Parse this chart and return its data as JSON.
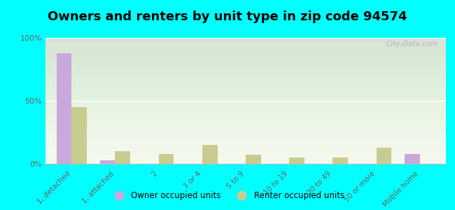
{
  "title": "Owners and renters by unit type in zip code 94574",
  "categories": [
    "1, detached",
    "1, attached",
    "2",
    "3 or 4",
    "5 to 9",
    "10 to 19",
    "20 to 49",
    "50 or more",
    "Mobile home"
  ],
  "owner_values": [
    88,
    3,
    0,
    0,
    0,
    0,
    0,
    0,
    8
  ],
  "renter_values": [
    45,
    10,
    8,
    15,
    7,
    5,
    5,
    13,
    0
  ],
  "owner_color": "#c9a8dc",
  "renter_color": "#c8cc90",
  "background_color": "#00ffff",
  "ylim": [
    0,
    100
  ],
  "yticks": [
    0,
    50,
    100
  ],
  "ytick_labels": [
    "0%",
    "50%",
    "100%"
  ],
  "bar_width": 0.35,
  "title_fontsize": 13,
  "watermark": "City-Data.com",
  "legend_labels": [
    "Owner occupied units",
    "Renter occupied units"
  ]
}
